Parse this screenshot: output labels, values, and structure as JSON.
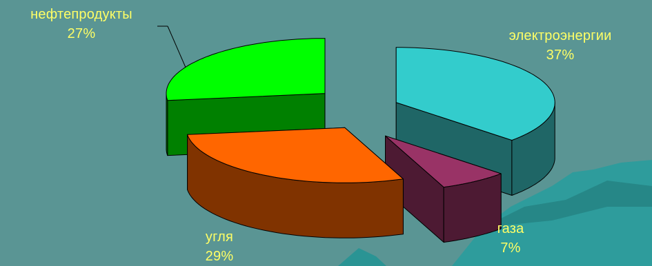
{
  "chart_data": {
    "type": "pie",
    "title": "",
    "slices": [
      {
        "label": "электроэнергии",
        "value": 37,
        "value_text": "37%",
        "top_color": "#33cccc",
        "side_color": "#1f6666"
      },
      {
        "label": "газа",
        "value": 7,
        "value_text": "7%",
        "top_color": "#993366",
        "side_color": "#4d1a33"
      },
      {
        "label": "угля",
        "value": 29,
        "value_text": "29%",
        "top_color": "#ff6600",
        "side_color": "#803300"
      },
      {
        "label": "нефтепродукты",
        "value": 27,
        "value_text": "27%",
        "top_color": "#00ff00",
        "side_color": "#008000"
      }
    ],
    "exploded": true,
    "style": "3d",
    "legend": "none",
    "background_color": "#5a9594",
    "label_color": "#ffff66"
  }
}
